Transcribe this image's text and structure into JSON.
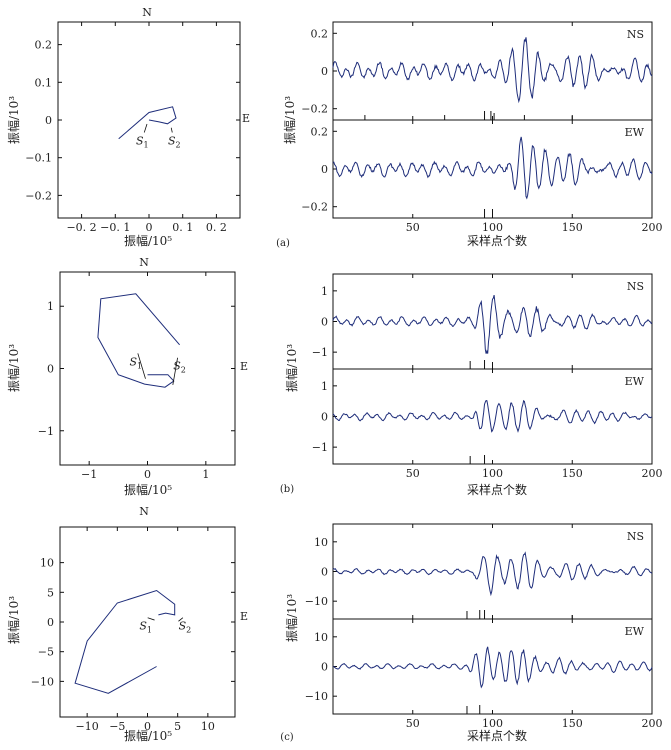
{
  "chart_data": [
    {
      "panel": "(a)",
      "hodogram": {
        "type": "line",
        "north_label": "N",
        "east_label": "E",
        "xlabel": "振幅/10⁵",
        "ylabel": "振幅/10³",
        "xlim": [
          -0.27,
          0.27
        ],
        "ylim": [
          -0.26,
          0.26
        ],
        "xticks": [
          -0.2,
          -0.1,
          0,
          0.1,
          0.2
        ],
        "xtick_labels": [
          "−0. 2",
          "−0. 1",
          "0",
          "0. 1",
          "0. 2"
        ],
        "yticks": [
          0.2,
          0.1,
          0,
          -0.1,
          -0.2
        ],
        "ytick_labels": [
          "0.2",
          "0.1",
          "0",
          "−0.1",
          "−0.2"
        ],
        "path": [
          [
            -0.09,
            -0.05
          ],
          [
            0.0,
            0.02
          ],
          [
            0.07,
            0.035
          ],
          [
            0.08,
            0.005
          ],
          [
            0.055,
            -0.01
          ],
          [
            0.03,
            -0.005
          ],
          [
            0.0,
            0.0
          ]
        ],
        "s1": {
          "label": "S",
          "sub": "1",
          "point": [
            0.0,
            0.0
          ],
          "label_at": [
            -0.02,
            -0.065
          ]
        },
        "s2": {
          "label": "S",
          "sub": "2",
          "point": [
            0.06,
            -0.01
          ],
          "label_at": [
            0.075,
            -0.065
          ]
        }
      },
      "traces": {
        "type": "line",
        "xlabel": "采样点个数",
        "ylabel": "振幅/10³",
        "xlim": [
          0,
          200
        ],
        "xticks": [
          50,
          100,
          150,
          200
        ],
        "series": [
          {
            "name": "NS",
            "ylim": [
              -0.26,
              0.26
            ],
            "yticks": [
              0.2,
              0,
              -0.2
            ],
            "ytick_labels": [
              "0.2",
              "0",
              "−0.2"
            ],
            "noise": 0.03,
            "burst_amp": 0.18,
            "burst_start": 96,
            "burst_peak": 112,
            "burst_decay": 42,
            "period": 8.5,
            "phase": 0.4,
            "picks": [
              [
                20,
                0.5
              ],
              [
                70,
                0.5
              ],
              [
                95,
                0.9
              ],
              [
                99,
                0.9
              ],
              [
                101,
                0.7
              ],
              [
                120,
                0.5
              ],
              [
                150,
                0.5
              ]
            ]
          },
          {
            "name": "EW",
            "ylim": [
              -0.26,
              0.26
            ],
            "yticks": [
              0.2,
              0,
              -0.2
            ],
            "ytick_labels": [
              "0.2",
              "0",
              "−0.2"
            ],
            "noise": 0.025,
            "burst_amp": 0.15,
            "burst_start": 98,
            "burst_peak": 118,
            "burst_decay": 45,
            "period": 7.8,
            "phase": 1.1,
            "picks": [
              [
                95,
                0.9
              ],
              [
                100,
                0.9
              ]
            ]
          }
        ]
      }
    },
    {
      "panel": "(b)",
      "hodogram": {
        "type": "line",
        "north_label": "N",
        "east_label": "E",
        "xlabel": "振幅/10⁵",
        "ylabel": "振幅/10³",
        "xlim": [
          -1.5,
          1.5
        ],
        "ylim": [
          -1.55,
          1.55
        ],
        "xticks": [
          -1,
          0,
          1
        ],
        "xtick_labels": [
          "−1",
          "0",
          "1"
        ],
        "yticks": [
          1,
          0,
          -1
        ],
        "ytick_labels": [
          "1",
          "0",
          "−1"
        ],
        "path": [
          [
            0.55,
            0.38
          ],
          [
            -0.2,
            1.2
          ],
          [
            -0.8,
            1.12
          ],
          [
            -0.85,
            0.5
          ],
          [
            -0.5,
            -0.1
          ],
          [
            -0.05,
            -0.25
          ],
          [
            0.3,
            -0.3
          ],
          [
            0.45,
            -0.2
          ],
          [
            0.35,
            -0.1
          ],
          [
            0.0,
            -0.1
          ]
        ],
        "s1": {
          "label": "S",
          "sub": "1",
          "point": [
            0.0,
            -0.1
          ],
          "label_at": [
            -0.2,
            0.05
          ]
        },
        "s2": {
          "label": "S",
          "sub": "2",
          "point": [
            0.4,
            -0.2
          ],
          "label_at": [
            0.55,
            -0.02
          ]
        }
      },
      "traces": {
        "type": "line",
        "xlabel": "采样点个数",
        "ylabel": "振幅/10³",
        "xlim": [
          0,
          200
        ],
        "xticks": [
          50,
          100,
          150,
          200
        ],
        "series": [
          {
            "name": "NS",
            "ylim": [
              -1.55,
              1.55
            ],
            "yticks": [
              1,
              0,
              -1
            ],
            "ytick_labels": [
              "1",
              "0",
              "−1"
            ],
            "noise": 0.1,
            "burst_amp": 1.1,
            "burst_start": 88,
            "burst_peak": 96,
            "burst_decay": 30,
            "period": 9,
            "phase": 0.2,
            "picks": [
              [
                86,
                0.8
              ],
              [
                95,
                0.9
              ],
              [
                100,
                0.7
              ]
            ]
          },
          {
            "name": "EW",
            "ylim": [
              -1.55,
              1.55
            ],
            "yticks": [
              1,
              0,
              -1
            ],
            "ytick_labels": [
              "1",
              "0",
              "−1"
            ],
            "noise": 0.08,
            "burst_amp": 0.8,
            "burst_start": 88,
            "burst_peak": 95,
            "burst_decay": 40,
            "period": 8,
            "phase": 1.6,
            "picks": [
              [
                86,
                0.8
              ],
              [
                95,
                0.9
              ]
            ]
          }
        ]
      }
    },
    {
      "panel": "(c)",
      "hodogram": {
        "type": "line",
        "north_label": "N",
        "east_label": "E",
        "xlabel": "振幅/10⁵",
        "ylabel": "振幅/10³",
        "xlim": [
          -14.5,
          14.5
        ],
        "ylim": [
          -16,
          16
        ],
        "xticks": [
          -10,
          -5,
          0,
          5,
          10
        ],
        "xtick_labels": [
          "−10",
          "−5",
          "0",
          "5",
          "10"
        ],
        "yticks": [
          10,
          5,
          0,
          -5,
          -10
        ],
        "ytick_labels": [
          "10",
          "5",
          "0",
          "−5",
          "−10"
        ],
        "path": [
          [
            1.5,
            -7.5
          ],
          [
            -6.5,
            -12
          ],
          [
            -12,
            -10.3
          ],
          [
            -10,
            -3.2
          ],
          [
            -5,
            3.2
          ],
          [
            1.5,
            5.3
          ],
          [
            4.5,
            3
          ],
          [
            4.5,
            1.2
          ],
          [
            3,
            1.5
          ],
          [
            1.8,
            1.2
          ]
        ],
        "s1": {
          "label": "S",
          "sub": "1",
          "point": [
            1.5,
            1.0
          ],
          "label_at": [
            -0.3,
            -1.3
          ]
        },
        "s2": {
          "label": "S",
          "sub": "2",
          "point": [
            4.8,
            0.8
          ],
          "label_at": [
            6.2,
            -1.3
          ]
        }
      },
      "traces": {
        "type": "line",
        "xlabel": "采样点个数",
        "ylabel": "振幅/10³",
        "xlim": [
          0,
          200
        ],
        "xticks": [
          50,
          100,
          150,
          200
        ],
        "series": [
          {
            "name": "NS",
            "ylim": [
              -16,
              16
            ],
            "yticks": [
              10,
              0,
              -10
            ],
            "ytick_labels": [
              "10",
              "0",
              "−10"
            ],
            "noise": 0.6,
            "burst_amp": 9.5,
            "burst_start": 86,
            "burst_peak": 100,
            "burst_decay": 40,
            "period": 8.5,
            "phase": 0.8,
            "picks": [
              [
                84,
                0.8
              ],
              [
                92,
                0.9
              ],
              [
                95,
                0.9
              ],
              [
                150,
                0.4
              ]
            ]
          },
          {
            "name": "EW",
            "ylim": [
              -16,
              16
            ],
            "yticks": [
              10,
              0,
              -10
            ],
            "ytick_labels": [
              "10",
              "0",
              "−10"
            ],
            "noise": 0.6,
            "burst_amp": 9,
            "burst_start": 84,
            "burst_peak": 96,
            "burst_decay": 45,
            "period": 7.5,
            "phase": 2.1,
            "picks": [
              [
                84,
                0.8
              ],
              [
                92,
                0.9
              ]
            ]
          }
        ]
      }
    }
  ]
}
